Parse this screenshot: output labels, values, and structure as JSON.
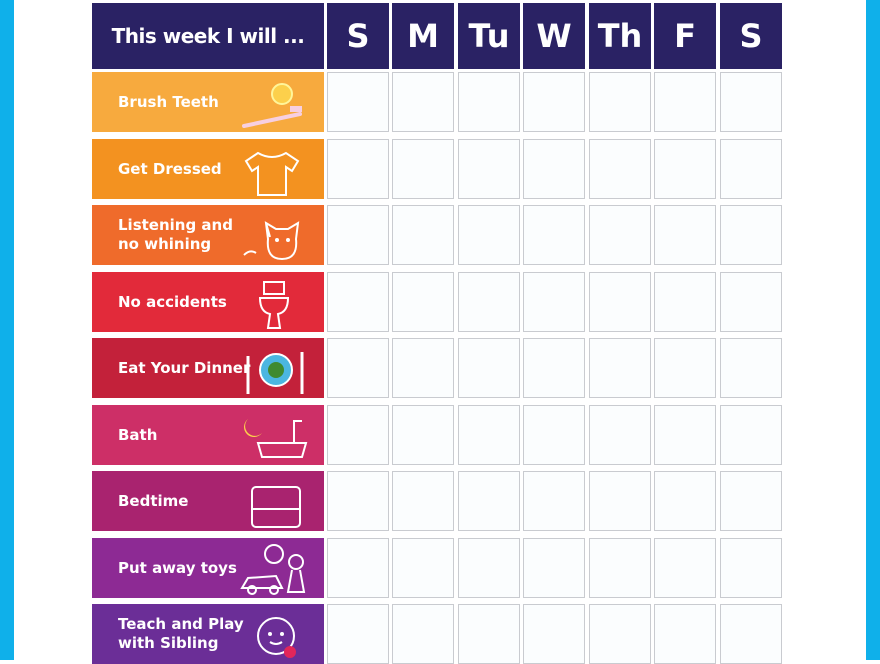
{
  "header": {
    "title": "This week I will ...",
    "days": [
      "S",
      "M",
      "Tu",
      "W",
      "Th",
      "F",
      "S"
    ]
  },
  "colors": {
    "border": "#0fb0ea",
    "header": "#2a2264"
  },
  "tasks": [
    {
      "label": "Brush Teeth",
      "icon": "toothbrush-sun-icon",
      "color": "#f7aa3e"
    },
    {
      "label": "Get Dressed",
      "icon": "tshirt-icon",
      "color": "#f39220"
    },
    {
      "label": "Listening and\nno whining",
      "icon": "cat-icon",
      "color": "#ef6b2b"
    },
    {
      "label": "No accidents",
      "icon": "toilet-icon",
      "color": "#e22a3a"
    },
    {
      "label": "Eat Your Dinner",
      "icon": "dinner-plate-icon",
      "color": "#c3213a"
    },
    {
      "label": "Bath",
      "icon": "bathtub-moon-icon",
      "color": "#cd2f67"
    },
    {
      "label": "Bedtime",
      "icon": "bed-icon",
      "color": "#a9236f"
    },
    {
      "label": "Put away toys",
      "icon": "toys-icon",
      "color": "#8d2a94"
    },
    {
      "label": "Teach and Play\nwith Sibling",
      "icon": "baby-face-icon",
      "color": "#6b2e97"
    }
  ]
}
